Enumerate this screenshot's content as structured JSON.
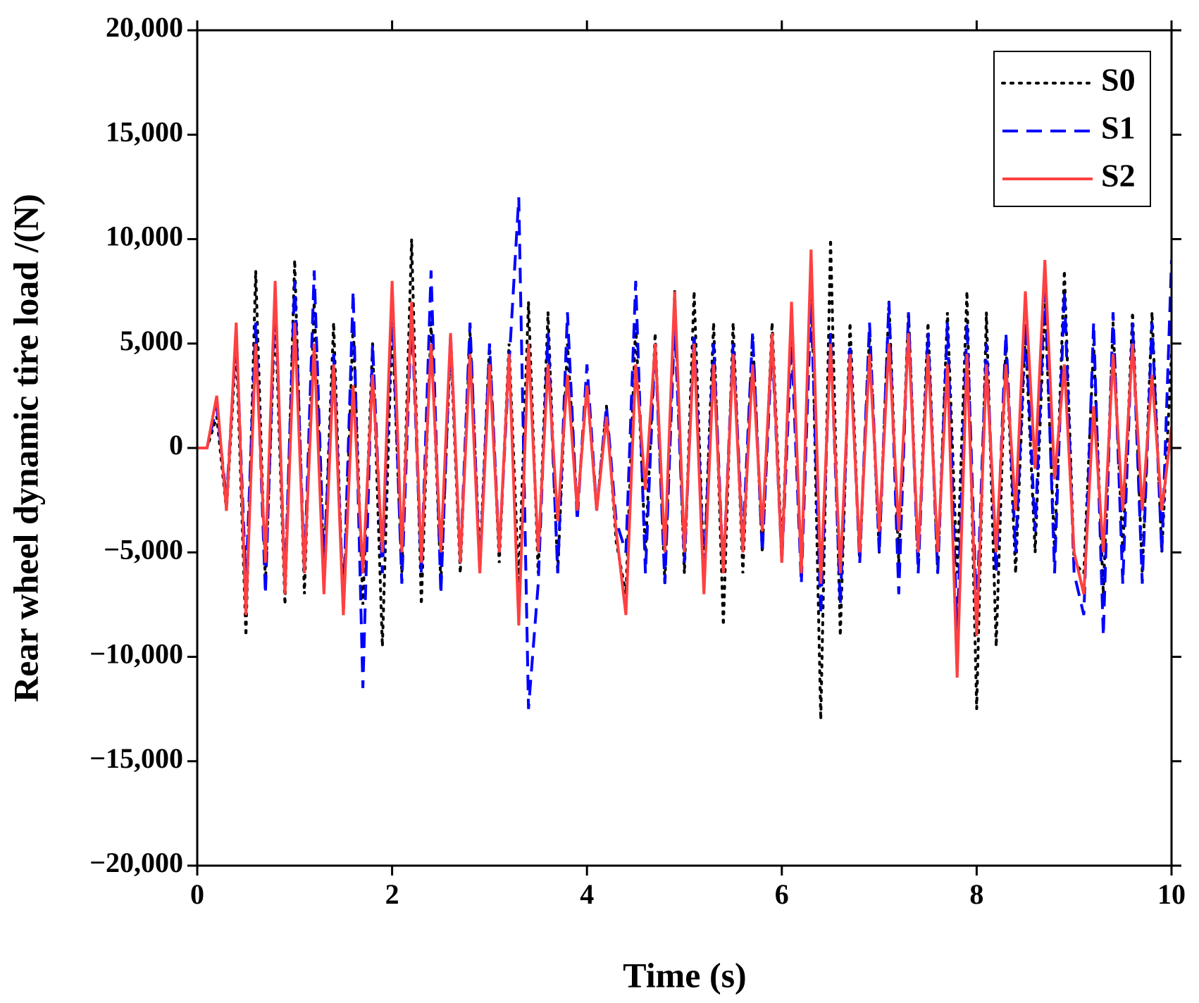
{
  "chart_data": {
    "type": "line",
    "xlabel": "Time (s)",
    "ylabel": "Rear wheel dynamic tire load /(N)",
    "x": [
      0,
      0.1,
      0.2,
      0.3,
      0.4,
      0.5,
      0.6,
      0.7,
      0.8,
      0.9,
      1,
      1.1,
      1.2,
      1.3,
      1.4,
      1.5,
      1.6,
      1.7,
      1.8,
      1.9,
      2,
      2.1,
      2.2,
      2.3,
      2.4,
      2.5,
      2.6,
      2.7,
      2.8,
      2.9,
      3,
      3.1,
      3.2,
      3.3,
      3.4,
      3.5,
      3.6,
      3.7,
      3.8,
      3.9,
      4,
      4.1,
      4.2,
      4.3,
      4.4,
      4.5,
      4.6,
      4.7,
      4.8,
      4.9,
      5,
      5.1,
      5.2,
      5.3,
      5.4,
      5.5,
      5.6,
      5.7,
      5.8,
      5.9,
      6,
      6.1,
      6.2,
      6.3,
      6.4,
      6.5,
      6.6,
      6.7,
      6.8,
      6.9,
      7,
      7.1,
      7.2,
      7.3,
      7.4,
      7.5,
      7.6,
      7.7,
      7.8,
      7.9,
      8,
      8.1,
      8.2,
      8.3,
      8.4,
      8.5,
      8.6,
      8.7,
      8.8,
      8.9,
      9,
      9.1,
      9.2,
      9.3,
      9.4,
      9.5,
      9.6,
      9.7,
      9.8,
      9.9,
      10
    ],
    "series": [
      {
        "name": "S0",
        "color": "#000000",
        "linestyle": "dotted",
        "values": [
          0,
          0,
          1500,
          -3000,
          5000,
          -9000,
          8500,
          -6500,
          6500,
          -7500,
          9000,
          -7000,
          7000,
          -6000,
          6000,
          -8000,
          6000,
          -7500,
          5000,
          -9500,
          6000,
          -6000,
          10000,
          -7500,
          6000,
          -6500,
          5000,
          -6000,
          5500,
          -5500,
          5000,
          -5500,
          5000,
          -6500,
          7000,
          -6000,
          6500,
          -6000,
          5000,
          -3000,
          3000,
          -3000,
          2000,
          -4500,
          -7000,
          6000,
          -5000,
          5500,
          -6500,
          7500,
          -6000,
          7500,
          -6000,
          6000,
          -8500,
          6000,
          -6000,
          5500,
          -5000,
          6000,
          -5000,
          6500,
          -6000,
          9000,
          -13000,
          10000,
          -9000,
          6000,
          -5500,
          5500,
          -5000,
          7000,
          -5500,
          6500,
          -5500,
          6000,
          -6000,
          6500,
          -6000,
          7500,
          -12500,
          6500,
          -9500,
          5000,
          -6000,
          5500,
          -5000,
          7000,
          -5000,
          8500,
          -5500,
          -6000,
          5000,
          -7000,
          6000,
          -5000,
          6500,
          -6000,
          6500,
          -5000,
          4500
        ]
      },
      {
        "name": "S1",
        "color": "#0000ff",
        "linestyle": "dashed",
        "values": [
          0,
          0,
          2000,
          -2500,
          5500,
          -6500,
          6000,
          -7000,
          7500,
          -6500,
          8000,
          -6000,
          8500,
          -5500,
          4500,
          -7500,
          7500,
          -11500,
          5000,
          -6000,
          7000,
          -6500,
          6500,
          -6000,
          8500,
          -7000,
          5500,
          -5500,
          6000,
          -6000,
          5000,
          -5000,
          4000,
          12000,
          -12500,
          -6500,
          5500,
          -6000,
          6500,
          -3500,
          4000,
          -3000,
          2000,
          -3500,
          -5000,
          8000,
          -6000,
          5000,
          -6500,
          6000,
          -5500,
          5500,
          -6000,
          5000,
          -6000,
          5000,
          -4500,
          5500,
          -5000,
          5000,
          -5500,
          5000,
          -6500,
          7000,
          -8000,
          5500,
          -7500,
          5000,
          -5500,
          6000,
          -5000,
          7000,
          -7000,
          6500,
          -6000,
          5500,
          -6000,
          6000,
          -9000,
          6000,
          -8000,
          5000,
          -6000,
          5500,
          -5000,
          6000,
          -4000,
          8000,
          -6000,
          7500,
          -6000,
          -8000,
          6000,
          -9000,
          6500,
          -6500,
          6000,
          -6500,
          6000,
          -5000,
          9000
        ]
      },
      {
        "name": "S2",
        "color": "#ff4040",
        "linestyle": "solid",
        "values": [
          0,
          0,
          2500,
          -3000,
          6000,
          -8000,
          5000,
          -5500,
          8000,
          -7000,
          6000,
          -6000,
          5000,
          -7000,
          4000,
          -8000,
          3000,
          -6000,
          3500,
          -5000,
          8000,
          -5000,
          7000,
          -5500,
          5000,
          -5000,
          5500,
          -5500,
          4500,
          -6000,
          4000,
          -5000,
          4500,
          -8500,
          5000,
          -5000,
          4000,
          -3500,
          3500,
          -3000,
          3000,
          -3000,
          1500,
          -4000,
          -8000,
          4000,
          -2000,
          5000,
          -5000,
          7500,
          -5000,
          5000,
          -7000,
          4000,
          -6000,
          4500,
          -5000,
          4000,
          -4000,
          5500,
          -5500,
          7000,
          -6000,
          9500,
          -6500,
          5000,
          -6000,
          4500,
          -5000,
          4500,
          -4000,
          5000,
          -4000,
          5500,
          -5000,
          4500,
          -5000,
          4000,
          -11000,
          4500,
          -9000,
          4000,
          -5000,
          4000,
          -3000,
          7500,
          -1000,
          9000,
          -1500,
          4000,
          -5000,
          -7000,
          2000,
          -5000,
          4500,
          -3000,
          5000,
          -3000,
          3500,
          -3000,
          1000
        ]
      }
    ],
    "xlim": [
      0,
      10
    ],
    "xticks": [
      0,
      2,
      4,
      6,
      8,
      10
    ],
    "ylim": [
      -20000,
      20000
    ],
    "yticks": [
      {
        "value": -20000,
        "label": "−20,000"
      },
      {
        "value": -15000,
        "label": "−15,000"
      },
      {
        "value": -10000,
        "label": "−10,000"
      },
      {
        "value": -5000,
        "label": "−5,000"
      },
      0,
      {
        "value": 5000,
        "label": "5,000"
      },
      {
        "value": 10000,
        "label": "10,000"
      },
      {
        "value": 15000,
        "label": "15,000"
      },
      {
        "value": 20000,
        "label": "20,000"
      }
    ],
    "legend": "upper right",
    "grid": false
  }
}
